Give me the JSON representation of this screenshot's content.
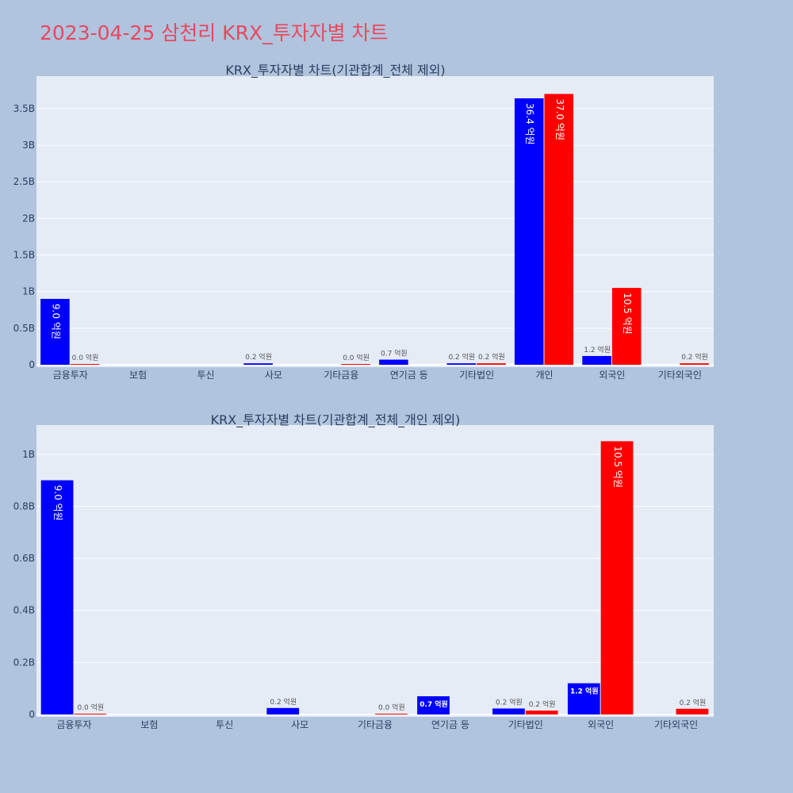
{
  "title": "2023-04-25 삼천리 KRX_투자자별 차트",
  "colors": {
    "buy": "#0000ff",
    "sell": "#ff0000",
    "plot_bg": "#e5ecf6",
    "paper_bg": "#b0c4de"
  },
  "chart_data": [
    {
      "type": "bar",
      "title": "KRX_투자자별 차트(기관합계_전체 제외)",
      "categories": [
        "금융투자",
        "보험",
        "투신",
        "사모",
        "기타금융",
        "연기금 등",
        "기타법인",
        "개인",
        "외국인",
        "기타외국인"
      ],
      "series": [
        {
          "color": "#0000ff",
          "values": [
            0.9,
            null,
            null,
            0.02,
            null,
            0.07,
            0.02,
            3.64,
            0.12,
            null
          ],
          "labels": [
            "9.0 억원",
            "",
            "",
            "0.2 억원",
            "",
            "0.7 억원",
            "0.2 억원",
            "36.4 억원",
            "1.2 억원",
            ""
          ]
        },
        {
          "color": "#ff0000",
          "values": [
            0.002,
            null,
            null,
            null,
            0.001,
            null,
            0.02,
            3.7,
            1.05,
            0.02
          ],
          "labels": [
            "0.0 억원",
            "",
            "",
            "",
            "0.0 억원",
            "",
            "0.2 억원",
            "37.0 억원",
            "10.5 억원",
            "0.2 억원"
          ]
        }
      ],
      "yticks": [
        "0",
        "0.5B",
        "1B",
        "1.5B",
        "2B",
        "2.5B",
        "3B",
        "3.5B"
      ],
      "ytick_values": [
        0,
        0.5,
        1,
        1.5,
        2,
        2.5,
        3,
        3.5
      ],
      "ylim": [
        0,
        3.9
      ],
      "grid": true
    },
    {
      "type": "bar",
      "title": "KRX_투자자별 차트(기관합계_전체_개인 제외)",
      "categories": [
        "금융투자",
        "보험",
        "투신",
        "사모",
        "기타금융",
        "연기금 등",
        "기타법인",
        "외국인",
        "기타외국인"
      ],
      "series": [
        {
          "color": "#0000ff",
          "values": [
            0.9,
            null,
            null,
            0.025,
            null,
            0.07,
            0.023,
            0.12,
            null
          ],
          "labels": [
            "9.0 억원",
            "",
            "",
            "0.2 억원",
            "",
            "0.7 억원",
            "0.2 억원",
            "1.2 억원",
            ""
          ]
        },
        {
          "color": "#ff0000",
          "values": [
            0.002,
            null,
            null,
            null,
            0.001,
            null,
            0.015,
            1.05,
            0.022
          ],
          "labels": [
            "0.0 억원",
            "",
            "",
            "",
            "0.0 억원",
            "",
            "0.2 억원",
            "10.5 억원",
            "0.2 억원"
          ]
        }
      ],
      "yticks": [
        "0",
        "0.2B",
        "0.4B",
        "0.6B",
        "0.8B",
        "1B"
      ],
      "ytick_values": [
        0,
        0.2,
        0.4,
        0.6,
        0.8,
        1.0
      ],
      "ylim": [
        0,
        1.1
      ],
      "grid": true
    }
  ]
}
